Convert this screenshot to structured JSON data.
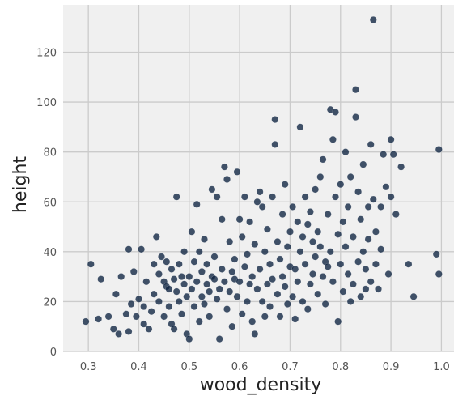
{
  "chart_data": {
    "type": "scatter",
    "title": "",
    "xlabel": "wood_density",
    "ylabel": "height",
    "xlim": [
      0.25,
      1.025
    ],
    "ylim": [
      0,
      139
    ],
    "x_ticks": [
      0.3,
      0.4,
      0.5,
      0.6,
      0.7,
      0.8,
      0.9,
      1.0
    ],
    "x_tick_labels": [
      "0.3",
      "0.4",
      "0.5",
      "0.6",
      "0.7",
      "0.8",
      "0.9",
      "1.0"
    ],
    "y_ticks": [
      0,
      20,
      40,
      60,
      80,
      100,
      120
    ],
    "y_tick_labels": [
      "0",
      "20",
      "40",
      "60",
      "80",
      "100",
      "120"
    ],
    "grid": true,
    "colors": {
      "background": "#f0f0f0",
      "grid": "#cbcbcb",
      "marker": "#0d2240"
    },
    "series": [
      {
        "points": [
          [
            0.295,
            12
          ],
          [
            0.305,
            35
          ],
          [
            0.325,
            29
          ],
          [
            0.32,
            13
          ],
          [
            0.34,
            14
          ],
          [
            0.35,
            9
          ],
          [
            0.36,
            7
          ],
          [
            0.355,
            23
          ],
          [
            0.365,
            30
          ],
          [
            0.375,
            15
          ],
          [
            0.38,
            41
          ],
          [
            0.38,
            8
          ],
          [
            0.385,
            19
          ],
          [
            0.39,
            32
          ],
          [
            0.395,
            14
          ],
          [
            0.4,
            21
          ],
          [
            0.405,
            41
          ],
          [
            0.41,
            18
          ],
          [
            0.41,
            11
          ],
          [
            0.415,
            28
          ],
          [
            0.42,
            9
          ],
          [
            0.425,
            16
          ],
          [
            0.43,
            35
          ],
          [
            0.43,
            23
          ],
          [
            0.435,
            46
          ],
          [
            0.44,
            20
          ],
          [
            0.44,
            31
          ],
          [
            0.445,
            38
          ],
          [
            0.45,
            28
          ],
          [
            0.45,
            14
          ],
          [
            0.455,
            26
          ],
          [
            0.455,
            36
          ],
          [
            0.46,
            25
          ],
          [
            0.46,
            18
          ],
          [
            0.465,
            33
          ],
          [
            0.465,
            11
          ],
          [
            0.47,
            29
          ],
          [
            0.47,
            9
          ],
          [
            0.475,
            62
          ],
          [
            0.475,
            24
          ],
          [
            0.48,
            35
          ],
          [
            0.48,
            20
          ],
          [
            0.485,
            30
          ],
          [
            0.485,
            15
          ],
          [
            0.49,
            27
          ],
          [
            0.49,
            40
          ],
          [
            0.495,
            22
          ],
          [
            0.495,
            7
          ],
          [
            0.5,
            5
          ],
          [
            0.5,
            30
          ],
          [
            0.505,
            48
          ],
          [
            0.505,
            25
          ],
          [
            0.51,
            36
          ],
          [
            0.51,
            18
          ],
          [
            0.515,
            59
          ],
          [
            0.515,
            28
          ],
          [
            0.52,
            40
          ],
          [
            0.52,
            12
          ],
          [
            0.525,
            32
          ],
          [
            0.525,
            22
          ],
          [
            0.53,
            45
          ],
          [
            0.53,
            19
          ],
          [
            0.535,
            27
          ],
          [
            0.535,
            35
          ],
          [
            0.54,
            24
          ],
          [
            0.54,
            14
          ],
          [
            0.545,
            65
          ],
          [
            0.545,
            30
          ],
          [
            0.55,
            29
          ],
          [
            0.55,
            38
          ],
          [
            0.555,
            62
          ],
          [
            0.555,
            21
          ],
          [
            0.56,
            25
          ],
          [
            0.56,
            5
          ],
          [
            0.565,
            53
          ],
          [
            0.565,
            33
          ],
          [
            0.57,
            74
          ],
          [
            0.57,
            28
          ],
          [
            0.575,
            69
          ],
          [
            0.575,
            17
          ],
          [
            0.58,
            44
          ],
          [
            0.58,
            24
          ],
          [
            0.585,
            32
          ],
          [
            0.585,
            10
          ],
          [
            0.59,
            29
          ],
          [
            0.59,
            37
          ],
          [
            0.595,
            72
          ],
          [
            0.595,
            22
          ],
          [
            0.6,
            53
          ],
          [
            0.6,
            28
          ],
          [
            0.605,
            46
          ],
          [
            0.605,
            15
          ],
          [
            0.61,
            62
          ],
          [
            0.61,
            34
          ],
          [
            0.615,
            39
          ],
          [
            0.615,
            20
          ],
          [
            0.62,
            52
          ],
          [
            0.62,
            27
          ],
          [
            0.625,
            30
          ],
          [
            0.625,
            12
          ],
          [
            0.63,
            43
          ],
          [
            0.63,
            7
          ],
          [
            0.635,
            60
          ],
          [
            0.635,
            25
          ],
          [
            0.64,
            64
          ],
          [
            0.64,
            33
          ],
          [
            0.645,
            58
          ],
          [
            0.645,
            20
          ],
          [
            0.65,
            40
          ],
          [
            0.65,
            14
          ],
          [
            0.655,
            27
          ],
          [
            0.655,
            49
          ],
          [
            0.66,
            35
          ],
          [
            0.66,
            18
          ],
          [
            0.665,
            62
          ],
          [
            0.665,
            29
          ],
          [
            0.67,
            93
          ],
          [
            0.67,
            83
          ],
          [
            0.675,
            44
          ],
          [
            0.675,
            23
          ],
          [
            0.68,
            37
          ],
          [
            0.68,
            14
          ],
          [
            0.685,
            55
          ],
          [
            0.685,
            30
          ],
          [
            0.69,
            67
          ],
          [
            0.69,
            26
          ],
          [
            0.695,
            42
          ],
          [
            0.695,
            19
          ],
          [
            0.7,
            48
          ],
          [
            0.7,
            34
          ],
          [
            0.705,
            58
          ],
          [
            0.705,
            22
          ],
          [
            0.71,
            33
          ],
          [
            0.71,
            13
          ],
          [
            0.715,
            52
          ],
          [
            0.715,
            28
          ],
          [
            0.72,
            90
          ],
          [
            0.72,
            40
          ],
          [
            0.725,
            46
          ],
          [
            0.725,
            20
          ],
          [
            0.73,
            62
          ],
          [
            0.73,
            35
          ],
          [
            0.735,
            51
          ],
          [
            0.735,
            17
          ],
          [
            0.74,
            56
          ],
          [
            0.74,
            27
          ],
          [
            0.745,
            44
          ],
          [
            0.745,
            31
          ],
          [
            0.75,
            65
          ],
          [
            0.75,
            38
          ],
          [
            0.755,
            48
          ],
          [
            0.755,
            23
          ],
          [
            0.76,
            70
          ],
          [
            0.76,
            42
          ],
          [
            0.765,
            77
          ],
          [
            0.765,
            30
          ],
          [
            0.77,
            36
          ],
          [
            0.77,
            19
          ],
          [
            0.775,
            55
          ],
          [
            0.775,
            34
          ],
          [
            0.78,
            97
          ],
          [
            0.78,
            40
          ],
          [
            0.785,
            85
          ],
          [
            0.785,
            28
          ],
          [
            0.79,
            96
          ],
          [
            0.79,
            62
          ],
          [
            0.795,
            47
          ],
          [
            0.795,
            12
          ],
          [
            0.8,
            67
          ],
          [
            0.8,
            35
          ],
          [
            0.805,
            52
          ],
          [
            0.805,
            24
          ],
          [
            0.81,
            80
          ],
          [
            0.81,
            42
          ],
          [
            0.815,
            58
          ],
          [
            0.815,
            31
          ],
          [
            0.82,
            70
          ],
          [
            0.82,
            20
          ],
          [
            0.825,
            46
          ],
          [
            0.825,
            27
          ],
          [
            0.83,
            105
          ],
          [
            0.83,
            94
          ],
          [
            0.835,
            64
          ],
          [
            0.835,
            36
          ],
          [
            0.84,
            53
          ],
          [
            0.84,
            22
          ],
          [
            0.845,
            75
          ],
          [
            0.845,
            40
          ],
          [
            0.85,
            33
          ],
          [
            0.85,
            25
          ],
          [
            0.855,
            58
          ],
          [
            0.855,
            45
          ],
          [
            0.86,
            83
          ],
          [
            0.86,
            28
          ],
          [
            0.865,
            133
          ],
          [
            0.865,
            61
          ],
          [
            0.87,
            48
          ],
          [
            0.87,
            35
          ],
          [
            0.875,
            25
          ],
          [
            0.88,
            41
          ],
          [
            0.88,
            58
          ],
          [
            0.885,
            79
          ],
          [
            0.89,
            66
          ],
          [
            0.895,
            31
          ],
          [
            0.9,
            85
          ],
          [
            0.9,
            62
          ],
          [
            0.905,
            79
          ],
          [
            0.91,
            55
          ],
          [
            0.92,
            74
          ],
          [
            0.935,
            35
          ],
          [
            0.945,
            22
          ],
          [
            0.99,
            39
          ],
          [
            0.995,
            31
          ],
          [
            0.995,
            81
          ]
        ]
      }
    ]
  }
}
